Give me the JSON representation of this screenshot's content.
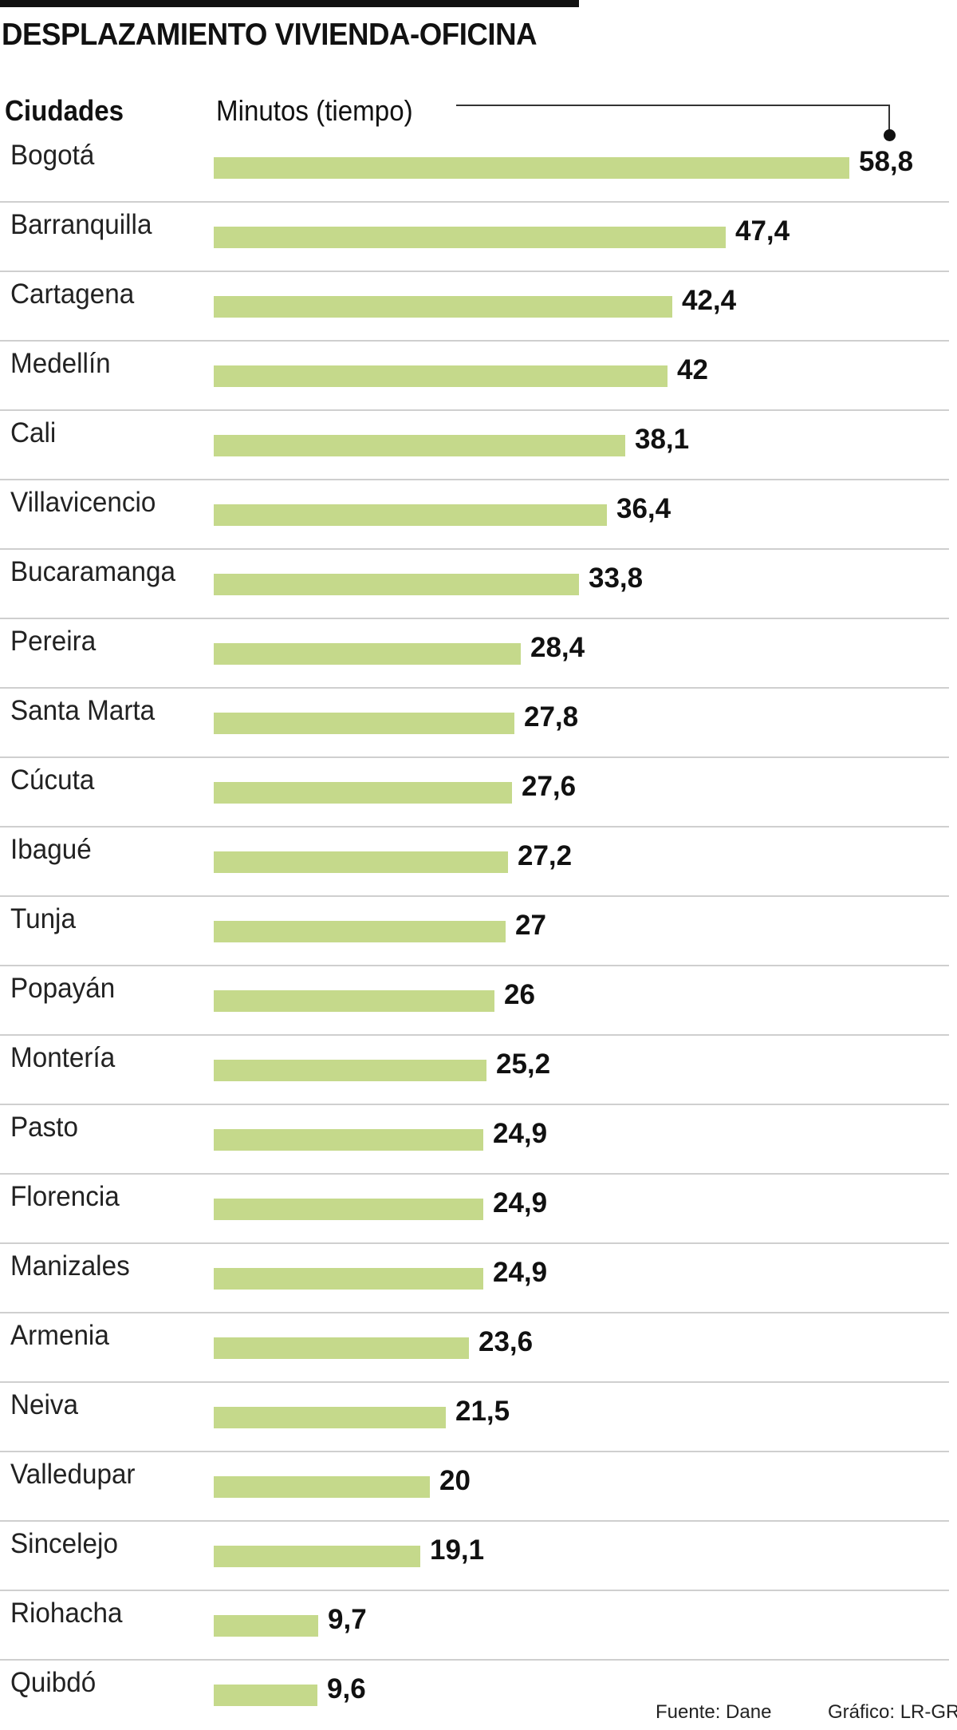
{
  "title": "DESPLAZAMIENTO VIVIENDA-OFICINA",
  "footer": {
    "source": "Fuente: Dane",
    "credit": "Gráfico: LR-GR"
  },
  "colors": {
    "bar": "#c5d98b",
    "text": "#111111",
    "separator": "#cfcfcf"
  },
  "chart_data": {
    "type": "bar",
    "orientation": "horizontal",
    "title": "DESPLAZAMIENTO VIVIENDA-OFICINA",
    "xlabel": "Minutos (tiempo)",
    "ylabel": "Ciudades",
    "xlim": [
      0,
      58.8
    ],
    "categories": [
      "Bogotá",
      "Barranquilla",
      "Cartagena",
      "Medellín",
      "Cali",
      "Villavicencio",
      "Bucaramanga",
      "Pereira",
      "Santa Marta",
      "Cúcuta",
      "Ibagué",
      "Tunja",
      "Popayán",
      "Montería",
      "Pasto",
      "Florencia",
      "Manizales",
      "Armenia",
      "Neiva",
      "Valledupar",
      "Sincelejo",
      "Riohacha",
      "Quibdó"
    ],
    "values": [
      58.8,
      47.4,
      42.4,
      42,
      38.1,
      36.4,
      33.8,
      28.4,
      27.8,
      27.6,
      27.2,
      27,
      26,
      25.2,
      24.9,
      24.9,
      24.9,
      23.6,
      21.5,
      20,
      19.1,
      9.7,
      9.6
    ],
    "labels": [
      "58,8",
      "47,4",
      "42,4",
      "42",
      "38,1",
      "36,4",
      "33,8",
      "28,4",
      "27,8",
      "27,6",
      "27,2",
      "27",
      "26",
      "25,2",
      "24,9",
      "24,9",
      "24,9",
      "23,6",
      "21,5",
      "20",
      "19,1",
      "9,7",
      "9,6"
    ]
  }
}
